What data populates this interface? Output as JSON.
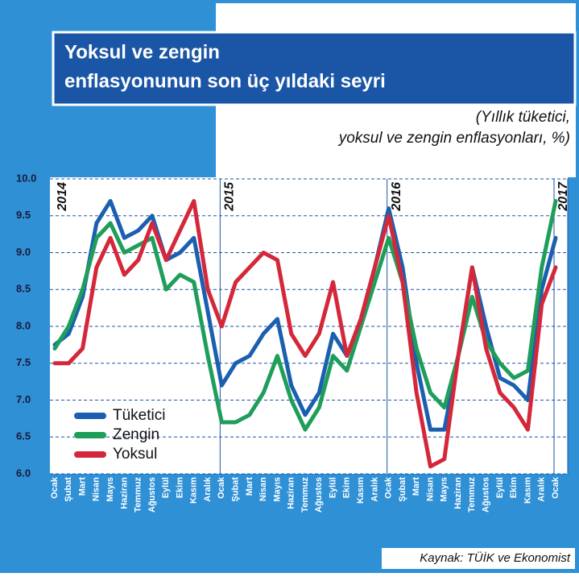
{
  "chart_data": {
    "type": "line",
    "title": [
      "Yoksul ve zengin",
      "enflasyonunun son üç yıldaki seyri"
    ],
    "subtitle": [
      "(Yıllık tüketici,",
      "yoksul ve zengin enflasyonları, %)"
    ],
    "source": "Kaynak: TÜİK ve Ekonomist",
    "year_labels": [
      "2014",
      "2015",
      "2016",
      "2017"
    ],
    "categories": [
      "Ocak",
      "Şubat",
      "Mart",
      "Nisan",
      "Mayıs",
      "Haziran",
      "Temmuz",
      "Ağustos",
      "Eylül",
      "Ekim",
      "Kasım",
      "Aralık",
      "Ocak",
      "Şubat",
      "Mart",
      "Nisan",
      "Mayıs",
      "Haziran",
      "Temmuz",
      "Ağustos",
      "Eylül",
      "Ekim",
      "Kasım",
      "Aralık",
      "Ocak",
      "Şubat",
      "Mart",
      "Nisan",
      "Mayıs",
      "Haziran",
      "Temmuz",
      "Ağustos",
      "Eylül",
      "Ekim",
      "Kasım",
      "Aralık",
      "Ocak"
    ],
    "series": [
      {
        "name": "Tüketici",
        "color": "#1b5fb0",
        "values": [
          7.75,
          7.9,
          8.4,
          9.4,
          9.7,
          9.2,
          9.3,
          9.5,
          8.9,
          9.0,
          9.2,
          8.2,
          7.2,
          7.5,
          7.6,
          7.9,
          8.1,
          7.2,
          6.8,
          7.1,
          7.9,
          7.6,
          8.1,
          8.8,
          9.6,
          8.8,
          7.5,
          6.6,
          6.6,
          7.6,
          8.8,
          8.0,
          7.3,
          7.2,
          7.0,
          8.5,
          9.2
        ]
      },
      {
        "name": "Zengin",
        "color": "#1e9e5a",
        "values": [
          7.7,
          8.0,
          8.5,
          9.2,
          9.4,
          9.0,
          9.1,
          9.2,
          8.5,
          8.7,
          8.6,
          7.6,
          6.7,
          6.7,
          6.8,
          7.1,
          7.6,
          7.0,
          6.6,
          6.9,
          7.6,
          7.4,
          8.0,
          8.6,
          9.2,
          8.6,
          7.7,
          7.1,
          6.9,
          7.6,
          8.4,
          7.8,
          7.5,
          7.3,
          7.4,
          8.8,
          9.7
        ]
      },
      {
        "name": "Yoksul",
        "color": "#d4283a",
        "values": [
          7.5,
          7.5,
          7.7,
          8.8,
          9.2,
          8.7,
          8.9,
          9.4,
          8.9,
          9.3,
          9.7,
          8.5,
          8.0,
          8.6,
          8.8,
          9.0,
          8.9,
          7.9,
          7.6,
          7.9,
          8.6,
          7.6,
          8.1,
          8.8,
          9.5,
          8.6,
          7.1,
          6.1,
          6.2,
          7.6,
          8.8,
          7.7,
          7.1,
          6.9,
          6.6,
          8.3,
          8.8
        ]
      }
    ],
    "ylim": [
      6,
      10
    ],
    "yticks": [
      {
        "value": 6,
        "label": "6.0"
      },
      6.5,
      {
        "value": 7,
        "label": "7.0"
      },
      7.5,
      {
        "value": 8,
        "label": "8.0"
      },
      8.5,
      {
        "value": 9,
        "label": "9.0"
      },
      9.5,
      {
        "value": 10,
        "label": "10.0"
      }
    ],
    "grid": true
  }
}
